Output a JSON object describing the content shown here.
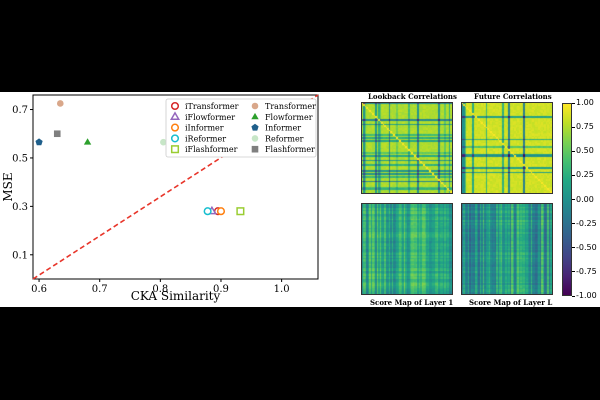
{
  "chart_data": [
    {
      "type": "scatter",
      "xlabel": "CKA Similarity",
      "ylabel": "MSE",
      "xlim": [
        0.59,
        1.06
      ],
      "ylim": [
        0.0,
        0.76
      ],
      "xticks": [
        "0.6",
        "0.7",
        "0.8",
        "0.9",
        "1.0"
      ],
      "xtick_values": [
        0.6,
        0.7,
        0.8,
        0.9,
        1.0
      ],
      "yticks": [
        "0.1",
        "0.3",
        "0.5",
        "0.7"
      ],
      "ytick_values": [
        0.1,
        0.3,
        0.5,
        0.7
      ],
      "reference_line": {
        "style": "dashed",
        "color": "#e8352a",
        "from": [
          0.59,
          0.0
        ],
        "to": [
          1.06,
          0.76
        ]
      },
      "legend_position": "top-right",
      "series": [
        {
          "name": "iTransformer",
          "marker": "circle-open",
          "color": "#d62728",
          "x": 0.895,
          "y": 0.28
        },
        {
          "name": "iFlowformer",
          "marker": "triangle-open",
          "color": "#9467bd",
          "x": 0.885,
          "y": 0.28
        },
        {
          "name": "iInformer",
          "marker": "circle-open",
          "color": "#ff7f0e",
          "x": 0.9,
          "y": 0.28
        },
        {
          "name": "iReformer",
          "marker": "circle-open",
          "color": "#17becf",
          "x": 0.878,
          "y": 0.28
        },
        {
          "name": "iFlashformer",
          "marker": "square-open",
          "color": "#9acd32",
          "x": 0.932,
          "y": 0.28
        },
        {
          "name": "Transformer",
          "marker": "circle",
          "color": "#d9a78a",
          "x": 0.635,
          "y": 0.725
        },
        {
          "name": "Flowformer",
          "marker": "triangle",
          "color": "#2ca02c",
          "x": 0.68,
          "y": 0.565
        },
        {
          "name": "Informer",
          "marker": "pentagon",
          "color": "#1f5f8b",
          "x": 0.6,
          "y": 0.565
        },
        {
          "name": "Reformer",
          "marker": "circle",
          "color": "#c7e6c7",
          "x": 0.805,
          "y": 0.565
        },
        {
          "name": "Flashformer",
          "marker": "square",
          "color": "#7f7f7f",
          "x": 0.63,
          "y": 0.6
        }
      ]
    },
    {
      "type": "heatmap",
      "title": "Lookback Correlations",
      "title_color": "#d2691e",
      "pattern": "lookback",
      "value_range": [
        -1.0,
        1.0
      ]
    },
    {
      "type": "heatmap",
      "title": "Future Correlations",
      "title_color": "#1fb8d8",
      "pattern": "future",
      "value_range": [
        -1.0,
        1.0
      ]
    },
    {
      "type": "heatmap",
      "title": "Score Map of Layer 1",
      "title_color": "#d2691e",
      "pattern": "score1",
      "value_range": [
        -1.0,
        1.0
      ]
    },
    {
      "type": "heatmap",
      "title": "Score Map of Layer L",
      "title_color": "#1fb8d8",
      "pattern": "scoreL",
      "value_range": [
        -1.0,
        1.0
      ]
    }
  ],
  "colorbar": {
    "colormap": "viridis",
    "ticks": [
      "1.00",
      "0.75",
      "0.50",
      "0.25",
      "0.00",
      "-0.25",
      "-0.50",
      "-0.75",
      "-1.00"
    ],
    "tick_values": [
      1.0,
      0.75,
      0.5,
      0.25,
      0.0,
      -0.25,
      -0.5,
      -0.75,
      -1.0
    ]
  }
}
